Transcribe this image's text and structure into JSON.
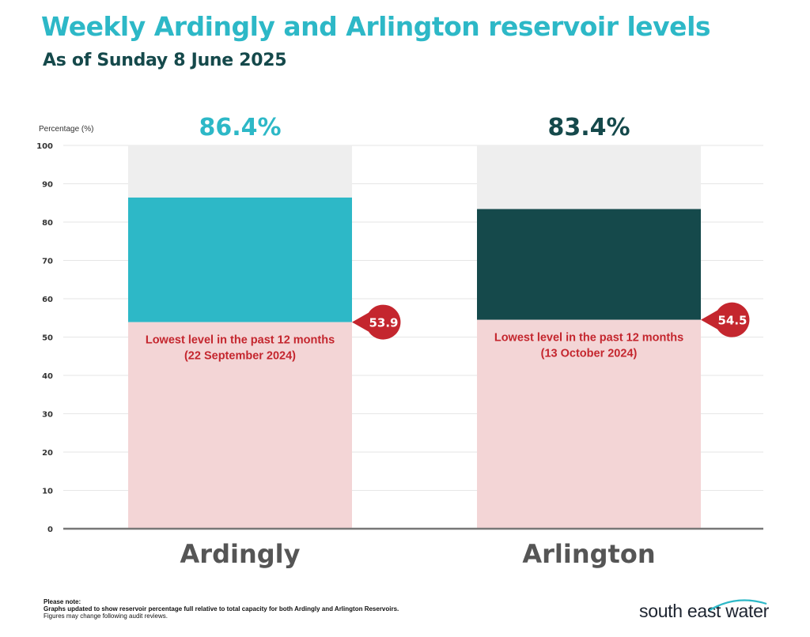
{
  "header": {
    "title": "Weekly Ardingly and Arlington reservoir levels",
    "subtitle": "As of Sunday 8 June 2025"
  },
  "chart_data": {
    "type": "bar",
    "ylabel": "Percentage (%)",
    "ylim": [
      0,
      100
    ],
    "yticks": [
      0,
      10,
      20,
      30,
      40,
      50,
      60,
      70,
      80,
      90,
      100
    ],
    "grid": true,
    "categories": [
      "Ardingly",
      "Arlington"
    ],
    "values": [
      86.4,
      83.4
    ],
    "value_labels": [
      "86.4%",
      "83.4%"
    ],
    "lowest_levels": [
      53.9,
      54.5
    ],
    "lowest_labels": [
      "53.9",
      "54.5"
    ],
    "lowest_notes": [
      [
        "Lowest level in the past 12 months",
        "(22 September 2024)"
      ],
      [
        "Lowest level in the past 12 months",
        "(13 October 2024)"
      ]
    ],
    "colors": {
      "ardingly": "#2db8c7",
      "arlington": "#15494b",
      "lowest_fill": "#f3d5d6",
      "lowest_marker": "#c4262e",
      "remaining": "#eeeeee"
    }
  },
  "footer": {
    "note_heading": "Please note:",
    "note_line1": "Graphs updated to show reservoir percentage full relative to total capacity for both Ardingly and Arlington Reservoirs.",
    "note_line2": "Figures may change following audit reviews.",
    "logo_text": "south east water"
  }
}
